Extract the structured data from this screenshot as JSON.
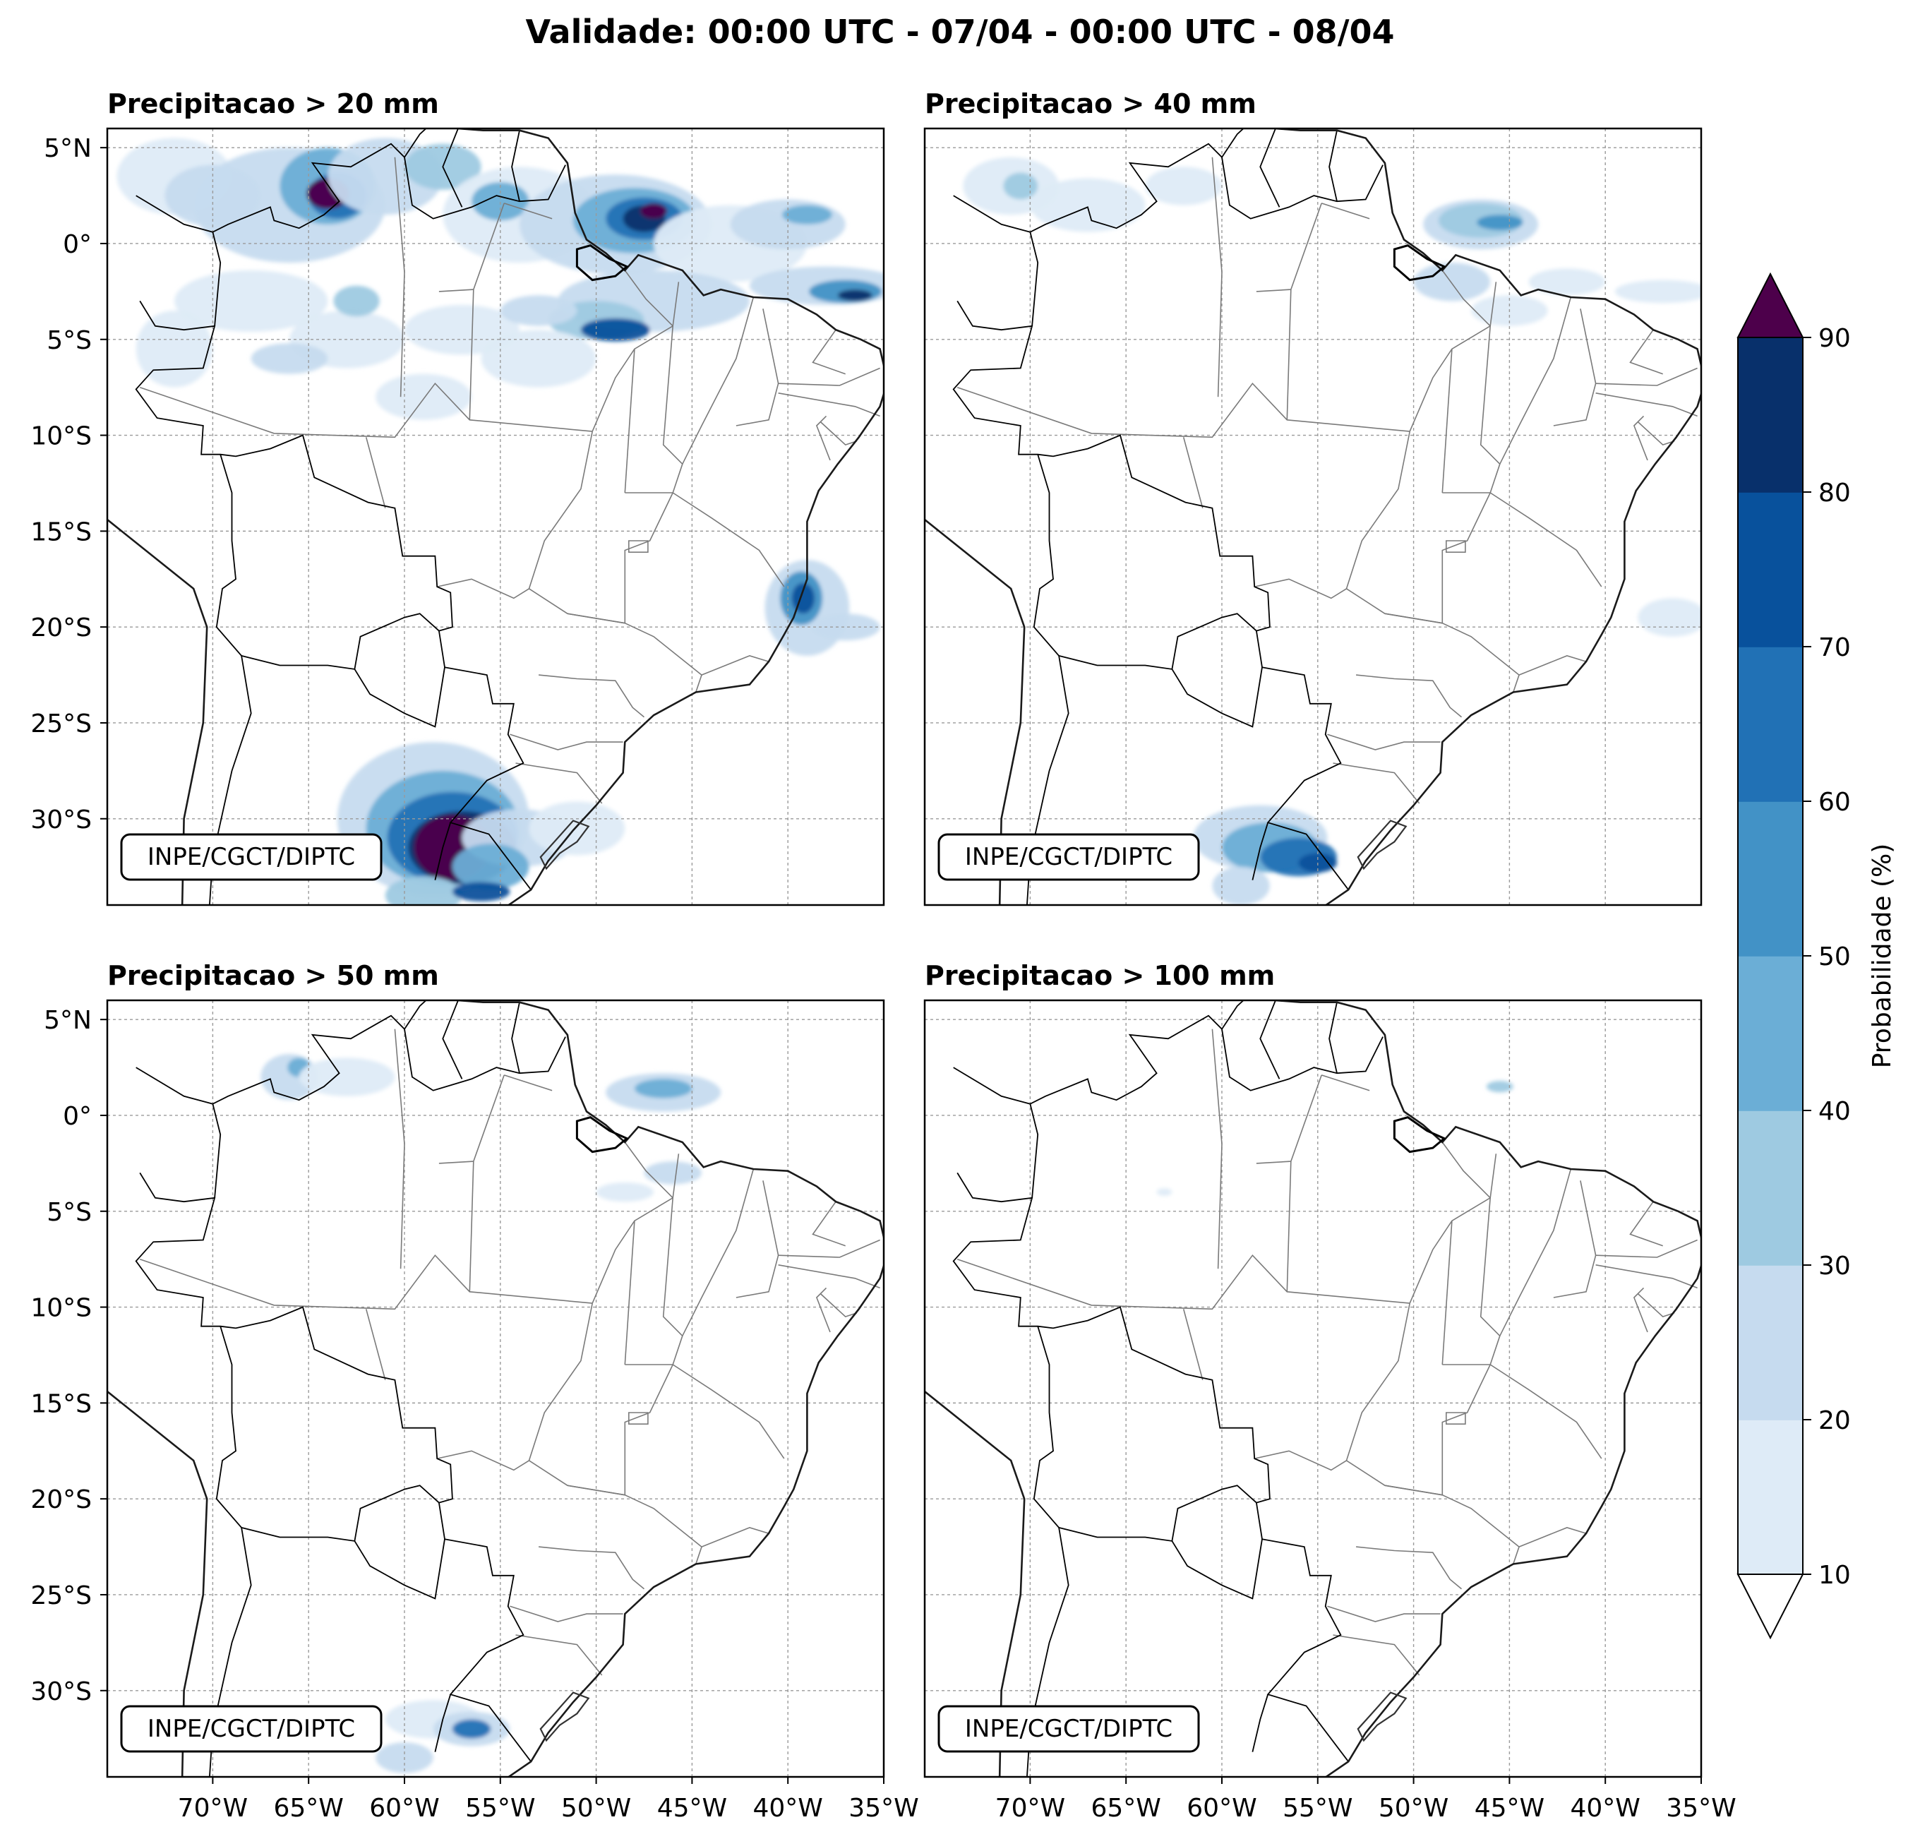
{
  "title": "Validade: 00:00 UTC - 07/04 - 00:00 UTC - 08/04",
  "panels": [
    {
      "title": "Precipitacao > 20 mm",
      "credit": "INPE/CGCT/DIPTC",
      "threshold_mm": 20
    },
    {
      "title": "Precipitacao > 40 mm",
      "credit": "INPE/CGCT/DIPTC",
      "threshold_mm": 40
    },
    {
      "title": "Precipitacao > 50 mm",
      "credit": "INPE/CGCT/DIPTC",
      "threshold_mm": 50
    },
    {
      "title": "Precipitacao > 100 mm",
      "credit": "INPE/CGCT/DIPTC",
      "threshold_mm": 100
    }
  ],
  "lat_ticks": [
    "5°N",
    "0°",
    "5°S",
    "10°S",
    "15°S",
    "20°S",
    "25°S",
    "30°S"
  ],
  "lon_ticks": [
    "70°W",
    "65°W",
    "60°W",
    "55°W",
    "50°W",
    "45°W",
    "40°W",
    "35°W"
  ],
  "colorbar": {
    "label": "Probabilidade (%)",
    "ticks": [
      "10",
      "20",
      "30",
      "40",
      "50",
      "60",
      "70",
      "80",
      "90"
    ],
    "colors": [
      "#deebf7",
      "#c6dbef",
      "#9ecae1",
      "#6baed6",
      "#4292c6",
      "#2171b5",
      "#08519c",
      "#08306b"
    ],
    "over_color": "#4d004b",
    "under_color": "#ffffff",
    "extend": "both"
  }
}
